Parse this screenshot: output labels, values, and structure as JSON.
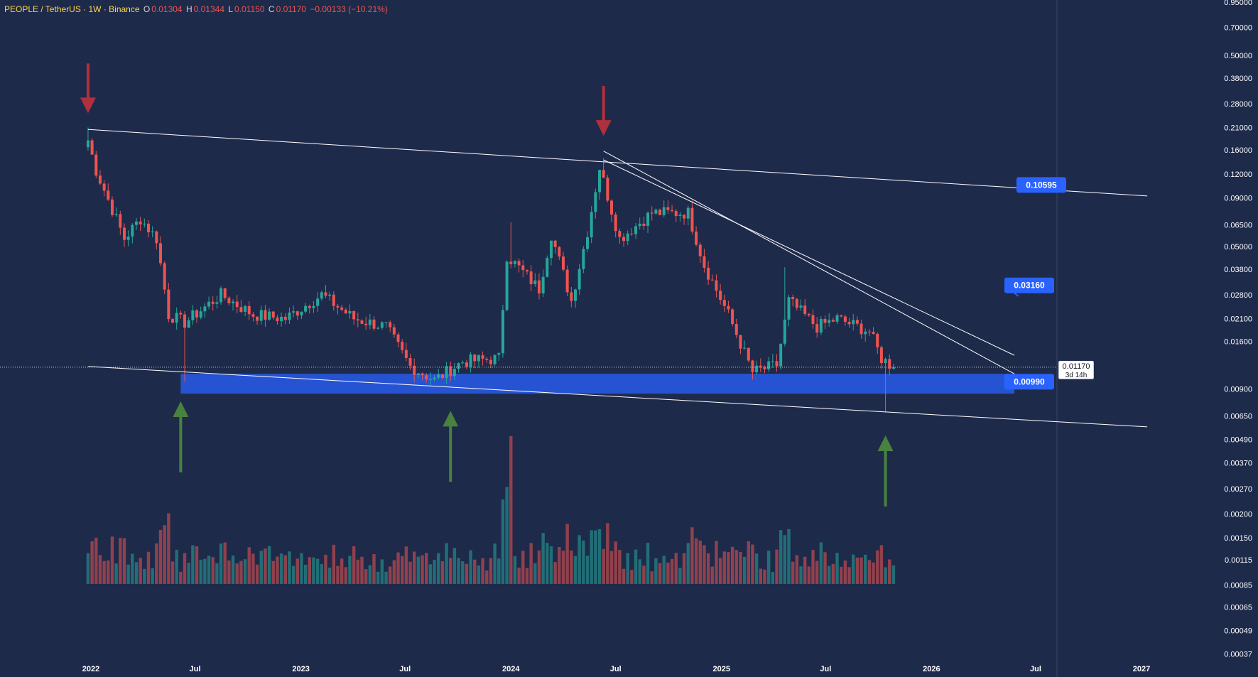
{
  "header": {
    "symbol": "PEOPLE / TetherUS · 1W · Binance",
    "o_label": "O",
    "o_value": "0.01304",
    "h_label": "H",
    "h_value": "0.01344",
    "l_label": "L",
    "l_value": "0.01150",
    "c_label": "C",
    "c_value": "0.01170",
    "change": "−0.00133 (−10.21%)"
  },
  "price_badge": {
    "price": "0.01170",
    "countdown": "3d 14h"
  },
  "callouts": [
    {
      "text": "0.10595",
      "price": 0.10595
    },
    {
      "text": "0.03160",
      "price": 0.0316
    },
    {
      "text": "0.00990",
      "price": 0.0099
    }
  ],
  "colors": {
    "background": "#1e2a4a",
    "up": "#26a69a",
    "down": "#ef5350",
    "zone": "#2962ff",
    "arrow_red": "#c0313c",
    "arrow_green": "#4c8c3e",
    "callout": "#2962ff"
  },
  "chart_data": {
    "type": "candlestick",
    "title": "PEOPLE / TetherUS · 1W · Binance",
    "y_scale": "log",
    "ylim": [
      0.0003,
      0.95
    ],
    "y_ticks": [
      "0.95000",
      "0.70000",
      "0.50000",
      "0.38000",
      "0.28000",
      "0.21000",
      "0.16000",
      "0.12000",
      "0.09000",
      "0.06500",
      "0.05000",
      "0.03800",
      "0.02800",
      "0.02100",
      "0.01600",
      "0.00900",
      "0.00650",
      "0.00490",
      "0.00370",
      "0.00270",
      "0.00200",
      "0.00150",
      "0.00115",
      "0.00085",
      "0.00065",
      "0.00049",
      "0.00037"
    ],
    "x_labels": [
      "2022",
      "Jul",
      "2023",
      "Jul",
      "2024",
      "Jul",
      "2025",
      "Jul",
      "2026",
      "Jul",
      "2027"
    ],
    "x_label_dates": [
      "2022-01-01",
      "2022-07-01",
      "2023-01-01",
      "2023-07-01",
      "2024-01-01",
      "2024-07-01",
      "2025-01-01",
      "2025-07-01",
      "2026-01-01",
      "2026-07-01",
      "2027-01-01"
    ],
    "last_price": 0.0117,
    "weekly_close_anchors": [
      {
        "date": "2021-12-27",
        "close": 0.18
      },
      {
        "date": "2022-01-10",
        "close": 0.125
      },
      {
        "date": "2022-01-31",
        "close": 0.088
      },
      {
        "date": "2022-02-28",
        "close": 0.055
      },
      {
        "date": "2022-03-28",
        "close": 0.07
      },
      {
        "date": "2022-04-25",
        "close": 0.055
      },
      {
        "date": "2022-05-16",
        "close": 0.022
      },
      {
        "date": "2022-06-13",
        "close": 0.02
      },
      {
        "date": "2022-08-15",
        "close": 0.028
      },
      {
        "date": "2022-10-10",
        "close": 0.022
      },
      {
        "date": "2022-12-05",
        "close": 0.021
      },
      {
        "date": "2023-02-06",
        "close": 0.028
      },
      {
        "date": "2023-04-03",
        "close": 0.021
      },
      {
        "date": "2023-05-29",
        "close": 0.019
      },
      {
        "date": "2023-07-10",
        "close": 0.0118
      },
      {
        "date": "2023-08-21",
        "close": 0.01
      },
      {
        "date": "2023-10-09",
        "close": 0.0125
      },
      {
        "date": "2023-12-11",
        "close": 0.013
      },
      {
        "date": "2023-12-25",
        "close": 0.045
      },
      {
        "date": "2024-02-19",
        "close": 0.03
      },
      {
        "date": "2024-03-11",
        "close": 0.058
      },
      {
        "date": "2024-04-15",
        "close": 0.026
      },
      {
        "date": "2024-05-13",
        "close": 0.06
      },
      {
        "date": "2024-06-03",
        "close": 0.13
      },
      {
        "date": "2024-07-08",
        "close": 0.055
      },
      {
        "date": "2024-09-02",
        "close": 0.075
      },
      {
        "date": "2024-11-04",
        "close": 0.075
      },
      {
        "date": "2024-12-02",
        "close": 0.04
      },
      {
        "date": "2025-01-13",
        "close": 0.022
      },
      {
        "date": "2025-02-24",
        "close": 0.011
      },
      {
        "date": "2025-04-07",
        "close": 0.012
      },
      {
        "date": "2025-04-28",
        "close": 0.026
      },
      {
        "date": "2025-06-16",
        "close": 0.019
      },
      {
        "date": "2025-07-21",
        "close": 0.021
      },
      {
        "date": "2025-09-15",
        "close": 0.018
      },
      {
        "date": "2025-10-06",
        "close": 0.013
      },
      {
        "date": "2025-10-27",
        "close": 0.0117
      }
    ],
    "notable_wicks": [
      {
        "date": "2021-12-27",
        "high": 0.21
      },
      {
        "date": "2022-06-13",
        "low": 0.0098
      },
      {
        "date": "2024-01-01",
        "high": 0.067
      },
      {
        "date": "2024-06-10",
        "high": 0.145
      },
      {
        "date": "2025-04-21",
        "high": 0.039
      },
      {
        "date": "2025-10-13",
        "low": 0.0068
      }
    ],
    "volume_spike": {
      "date": "2024-01-01",
      "relative": 1.0
    },
    "trendlines": [
      {
        "from": {
          "date": "2021-12-27",
          "price": 0.205
        },
        "to": {
          "date": "2027-01-11",
          "price": 0.092
        }
      },
      {
        "from": {
          "date": "2021-12-27",
          "price": 0.0118
        },
        "to": {
          "date": "2027-01-11",
          "price": 0.0057
        }
      },
      {
        "from": {
          "date": "2024-06-10",
          "price": 0.158
        },
        "to": {
          "date": "2026-05-25",
          "price": 0.0108
        }
      },
      {
        "from": {
          "date": "2024-06-10",
          "price": 0.142
        },
        "to": {
          "date": "2026-05-25",
          "price": 0.0135
        }
      }
    ],
    "support_zone": {
      "from": "2022-06-06",
      "to": "2026-05-25",
      "low": 0.0085,
      "high": 0.0108
    },
    "arrows": [
      {
        "color": "red",
        "direction": "down",
        "date": "2021-12-27",
        "price_tip": 0.21
      },
      {
        "color": "red",
        "direction": "down",
        "date": "2024-06-10",
        "price_tip": 0.16
      },
      {
        "color": "green",
        "direction": "up",
        "date": "2022-06-06",
        "price_tip": 0.0092
      },
      {
        "color": "green",
        "direction": "up",
        "date": "2023-09-18",
        "price_tip": 0.0082
      },
      {
        "color": "green",
        "direction": "up",
        "date": "2025-10-13",
        "price_tip": 0.0061
      }
    ]
  }
}
